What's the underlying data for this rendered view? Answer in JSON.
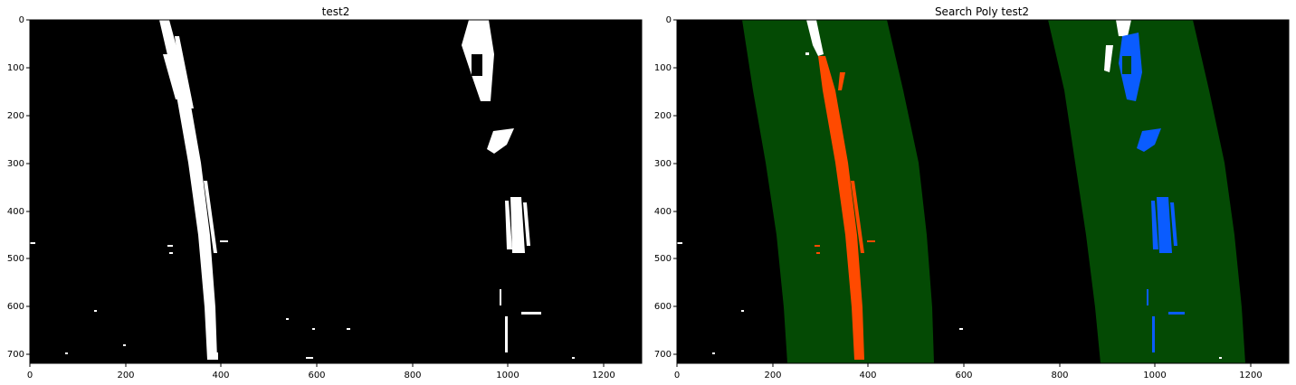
{
  "figure": {
    "panels": [
      {
        "title": "test2",
        "x_ticks": [
          "0",
          "200",
          "400",
          "600",
          "800",
          "1000",
          "1200"
        ],
        "y_ticks": [
          "0",
          "100",
          "200",
          "300",
          "400",
          "500",
          "600",
          "700"
        ]
      },
      {
        "title": "Search Poly test2",
        "x_ticks": [
          "0",
          "200",
          "400",
          "600",
          "800",
          "1000",
          "1200"
        ],
        "y_ticks": [
          "0",
          "100",
          "200",
          "300",
          "400",
          "500",
          "600",
          "700"
        ]
      }
    ],
    "colors": {
      "background": "#000000",
      "lane_pixels": "#ffffff",
      "search_window": "#044a04",
      "left_lane_detected": "#ff4a00",
      "right_lane_detected": "#0a5cff"
    }
  }
}
